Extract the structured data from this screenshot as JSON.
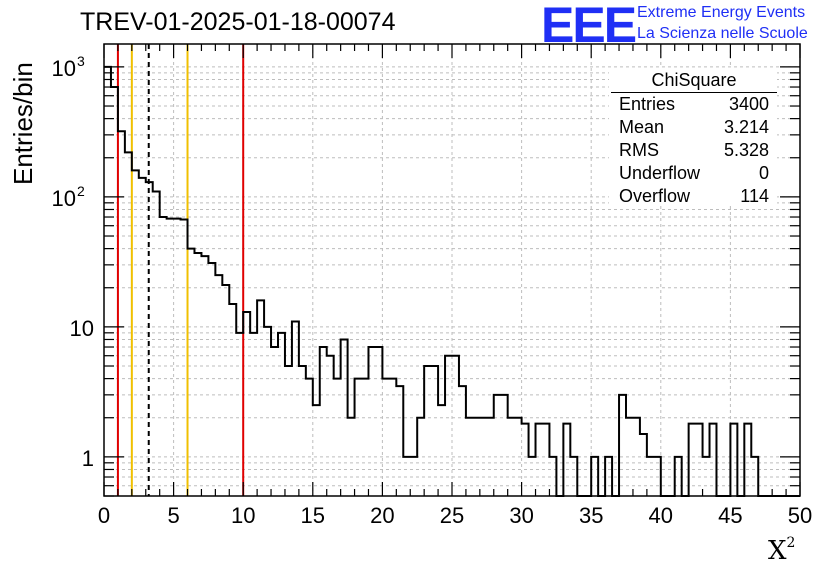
{
  "title": "TREV-01-2025-01-18-00074",
  "logo": {
    "mark": "EEE",
    "line1": "Extreme Energy Events",
    "line2": "La Scienza nelle Scuole",
    "color": "#1f2ff5"
  },
  "stats": {
    "name": "ChiSquare",
    "rows": [
      {
        "label": "Entries",
        "value": "3400"
      },
      {
        "label": "Mean",
        "value": "3.214"
      },
      {
        "label": "RMS",
        "value": "5.328"
      },
      {
        "label": "Underflow",
        "value": "0"
      },
      {
        "label": "Overflow",
        "value": "114"
      }
    ]
  },
  "chart_data": {
    "type": "histogram",
    "title": "TREV-01-2025-01-18-00074",
    "xlabel": "X",
    "xlabel_sup": "2",
    "ylabel": "Entries/bin",
    "yscale": "log",
    "xlim": [
      0,
      50
    ],
    "ylim": [
      0.5,
      1500
    ],
    "bin_width": 0.5,
    "grid": true,
    "x_ticks": [
      0,
      5,
      10,
      15,
      20,
      25,
      30,
      35,
      40,
      45,
      50
    ],
    "y_ticks": [
      {
        "value": 1,
        "label": "1"
      },
      {
        "value": 10,
        "label": "10"
      },
      {
        "value": 100,
        "label": "10",
        "sup": "2"
      },
      {
        "value": 1000,
        "label": "10",
        "sup": "3"
      }
    ],
    "counts": [
      1000,
      700,
      320,
      220,
      160,
      140,
      130,
      110,
      70,
      68,
      68,
      67,
      40,
      37,
      35,
      31,
      25,
      21,
      15,
      9,
      13,
      9,
      16,
      10,
      7,
      9,
      5,
      11,
      5,
      4,
      2.5,
      7,
      6,
      4,
      8,
      2,
      4,
      4,
      7,
      7,
      4,
      4,
      3.5,
      1,
      1,
      2,
      5,
      5,
      2.5,
      6,
      6,
      3.5,
      2,
      2,
      2,
      2,
      3,
      3,
      2,
      2,
      1.8,
      1,
      1.8,
      1.8,
      1,
      0.5,
      1.8,
      1,
      0.5,
      0.5,
      1,
      0.5,
      1,
      0.5,
      3,
      2,
      2,
      1.5,
      1,
      1,
      0.5,
      0.5,
      1,
      0.5,
      1.8,
      1.8,
      1,
      1.8,
      0.5,
      0.5,
      1.8,
      0.5,
      1.8,
      1,
      0.5,
      0.5,
      0.5,
      0.5,
      0.5,
      0.5
    ],
    "vertical_lines": [
      {
        "x": 1,
        "color": "#e00000",
        "style": "solid"
      },
      {
        "x": 2,
        "color": "#f0c000",
        "style": "solid"
      },
      {
        "x": 3.214,
        "color": "#000000",
        "style": "dashed"
      },
      {
        "x": 6,
        "color": "#f0c000",
        "style": "solid"
      },
      {
        "x": 10,
        "color": "#e00000",
        "style": "solid"
      }
    ]
  }
}
